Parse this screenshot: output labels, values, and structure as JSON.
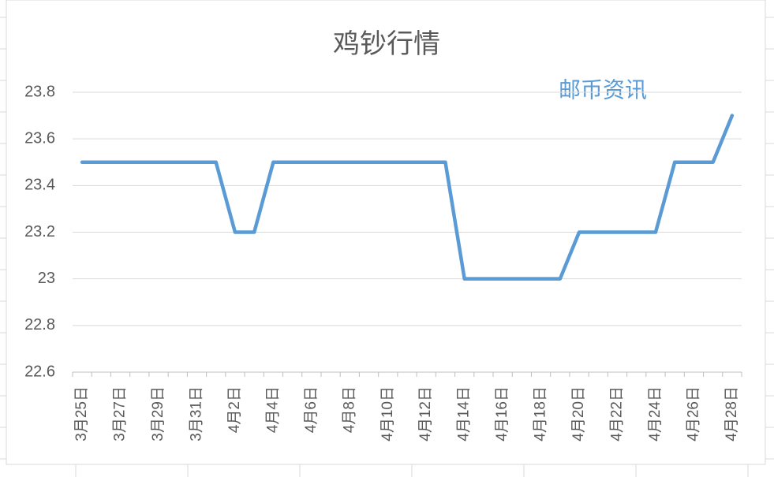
{
  "chart_data": {
    "type": "line",
    "title": "鸡钞行情",
    "annotation": "邮币资讯",
    "categories": [
      "3月25日",
      null,
      "3月27日",
      null,
      "3月29日",
      null,
      "3月31日",
      null,
      "4月2日",
      null,
      "4月4日",
      null,
      "4月6日",
      null,
      "4月8日",
      null,
      "4月10日",
      null,
      "4月12日",
      null,
      "4月14日",
      null,
      "4月16日",
      null,
      "4月18日",
      null,
      "4月20日",
      null,
      "4月22日",
      null,
      "4月24日",
      null,
      "4月26日",
      null,
      "4月28日"
    ],
    "values": [
      23.5,
      23.5,
      23.5,
      23.5,
      23.5,
      23.5,
      23.5,
      23.5,
      23.2,
      23.2,
      23.5,
      23.5,
      23.5,
      23.5,
      23.5,
      23.5,
      23.5,
      23.5,
      23.5,
      23.5,
      23,
      23,
      23,
      23,
      23,
      23,
      23.2,
      23.2,
      23.2,
      23.2,
      23.2,
      23.5,
      23.5,
      23.5,
      23.7
    ],
    "color": "#5b9bd5",
    "ylim": [
      22.6,
      23.8
    ],
    "yticks": [
      22.6,
      22.8,
      23,
      23.2,
      23.4,
      23.6,
      23.8
    ],
    "grid": true
  }
}
